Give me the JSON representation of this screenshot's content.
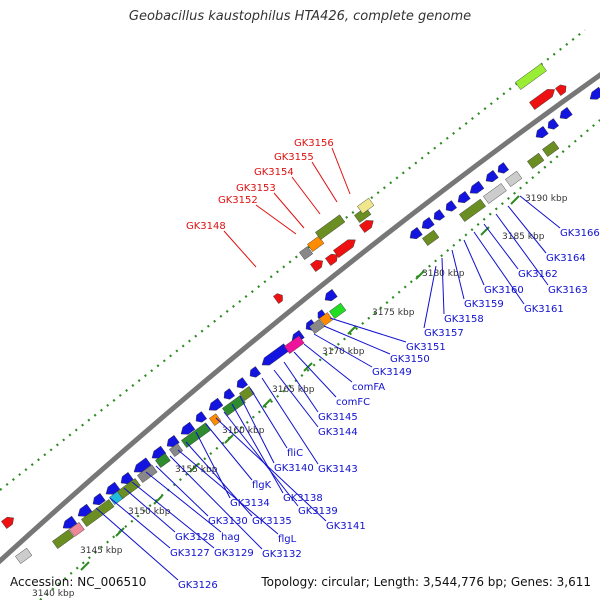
{
  "title": "Geobacillus kaustophilus HTA426, complete genome",
  "footer": {
    "accession": "Accession: NC_006510",
    "topology": "Topology: circular; Length: 3,544,776 bp; Genes: 3,611"
  },
  "colors": {
    "backbone": "#777777",
    "tick": "#2e8b22",
    "kbp_label": "#333333",
    "gene_label_forward": "#e01010",
    "gene_label_reverse": "#1010d0",
    "gene_blue": "#1414e0",
    "gene_red": "#ee1111",
    "gene_olive": "#6b8e23",
    "gene_green": "#2e8b2e",
    "gene_grey": "#888888",
    "gene_lightgrey": "#cccccc",
    "gene_orange": "#ff8c00",
    "gene_pale_yellow": "#f0e68c",
    "gene_lime": "#99ee33",
    "gene_magenta": "#ee1199",
    "gene_bright_green": "#22dd22",
    "gene_pink": "#ee8899",
    "gene_cyan": "#22bbdd"
  },
  "scale_labels": [
    "3140 kbp",
    "3145 kbp",
    "3150 kbp",
    "3155 kbp",
    "3160 kbp",
    "3165 kbp",
    "3170 kbp",
    "3175 kbp",
    "3180 kbp",
    "3185 kbp",
    "3190 kbp"
  ],
  "forward_labels": [
    "GK3148",
    "GK3152",
    "GK3153",
    "GK3154",
    "GK3155",
    "GK3156"
  ],
  "reverse_labels": [
    "GK3126",
    "GK3127",
    "GK3128",
    "GK3129",
    "hag",
    "GK3130",
    "GK3132",
    "flgL",
    "GK3135",
    "GK3134",
    "flgK",
    "GK3141",
    "GK3139",
    "GK3138",
    "GK3140",
    "fliC",
    "GK3143",
    "GK3144",
    "GK3145",
    "comFC",
    "comFA",
    "GK3149",
    "GK3150",
    "GK3151",
    "GK3157",
    "GK3158",
    "GK3159",
    "GK3160",
    "GK3161",
    "GK3162",
    "GK3163",
    "GK3164",
    "GK3166"
  ]
}
